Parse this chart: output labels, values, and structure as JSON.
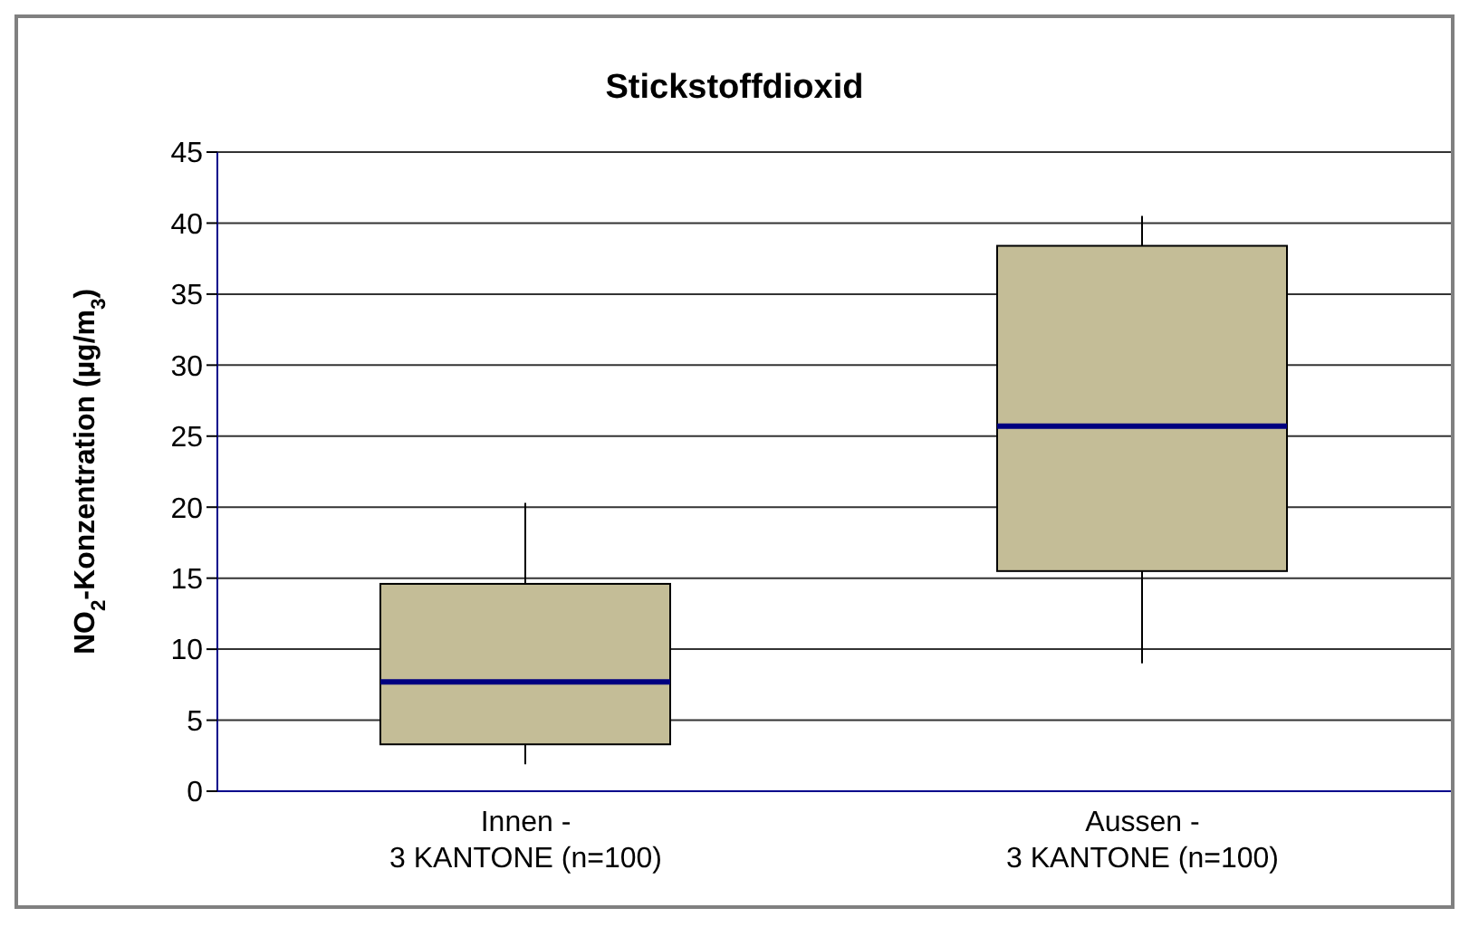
{
  "chart_data": {
    "type": "box",
    "title": "Stickstoffdioxid",
    "ylabel": "NO$_{2}$-Konzentration (µg/m$_{3}$)",
    "categories": [
      "Innen -\n3 KANTONE (n=100)",
      "Aussen -\n3 KANTONE (n=100)"
    ],
    "boxes": [
      {
        "low": 1.9,
        "q1": 3.3,
        "median": 7.7,
        "q3": 14.6,
        "high": 20.3
      },
      {
        "low": 9.0,
        "q1": 15.5,
        "median": 25.7,
        "q3": 38.4,
        "high": 40.5
      }
    ],
    "color": "#c4bd97",
    "ylim": [
      0,
      45
    ],
    "yticks": [
      0,
      5,
      10,
      15,
      20,
      25,
      30,
      35,
      40,
      45
    ],
    "grid": "y"
  }
}
